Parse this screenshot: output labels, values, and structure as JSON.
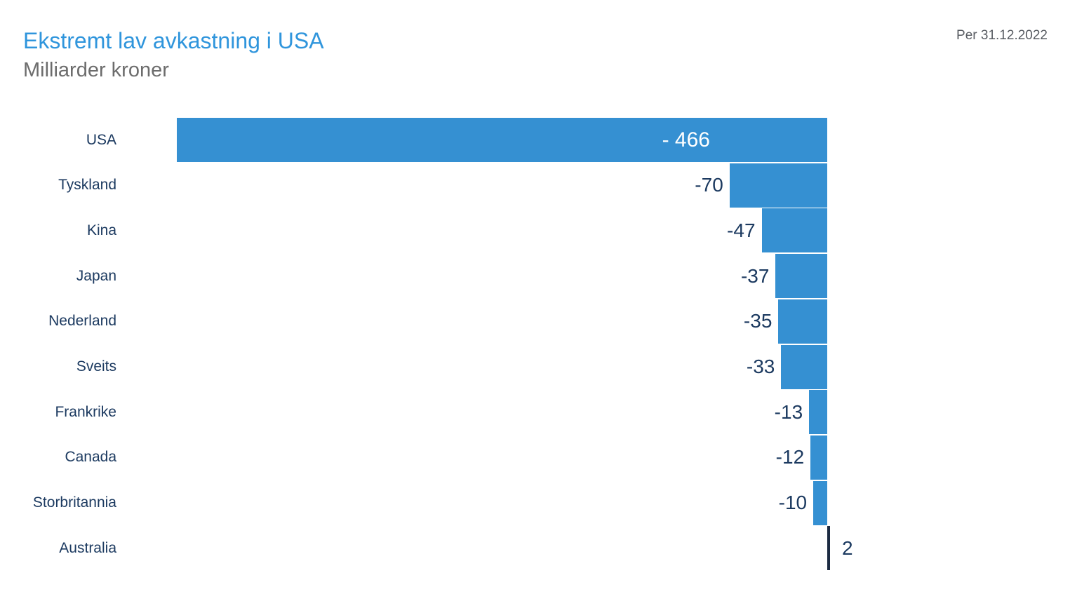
{
  "header": {
    "title": "Ekstremt lav avkastning i USA",
    "subtitle": "Milliarder kroner",
    "date_note": "Per 31.12.2022"
  },
  "colors": {
    "title": "#2f95dc",
    "subtitle": "#6c6c6c",
    "date_note": "#595d63",
    "bar_negative": "#3590d2",
    "bar_positive": "#1c2b42",
    "category_label": "#1c3a60",
    "value_label_outside": "#1c3a60",
    "value_label_inside": "#ffffff"
  },
  "chart_data": {
    "type": "bar",
    "orientation": "horizontal",
    "title": "Ekstremt lav avkastning i USA",
    "subtitle": "Milliarder kroner",
    "annotation": "Per 31.12.2022",
    "unit": "Milliarder kroner",
    "categories": [
      "USA",
      "Tyskland",
      "Kina",
      "Japan",
      "Nederland",
      "Sveits",
      "Frankrike",
      "Canada",
      "Storbritannia",
      "Australia"
    ],
    "values": [
      -466,
      -70,
      -47,
      -37,
      -35,
      -33,
      -13,
      -12,
      -10,
      2
    ],
    "value_labels": [
      "- 466",
      "-70",
      "-47",
      "-37",
      "-35",
      "-33",
      "-13",
      "-12",
      "-10",
      "2"
    ],
    "value_label_placement": [
      "inside",
      "outside",
      "outside",
      "outside",
      "outside",
      "outside",
      "outside",
      "outside",
      "outside",
      "outside"
    ],
    "xlim": [
      -466,
      2
    ],
    "grid": false,
    "legend": false,
    "axis_lines": false
  }
}
